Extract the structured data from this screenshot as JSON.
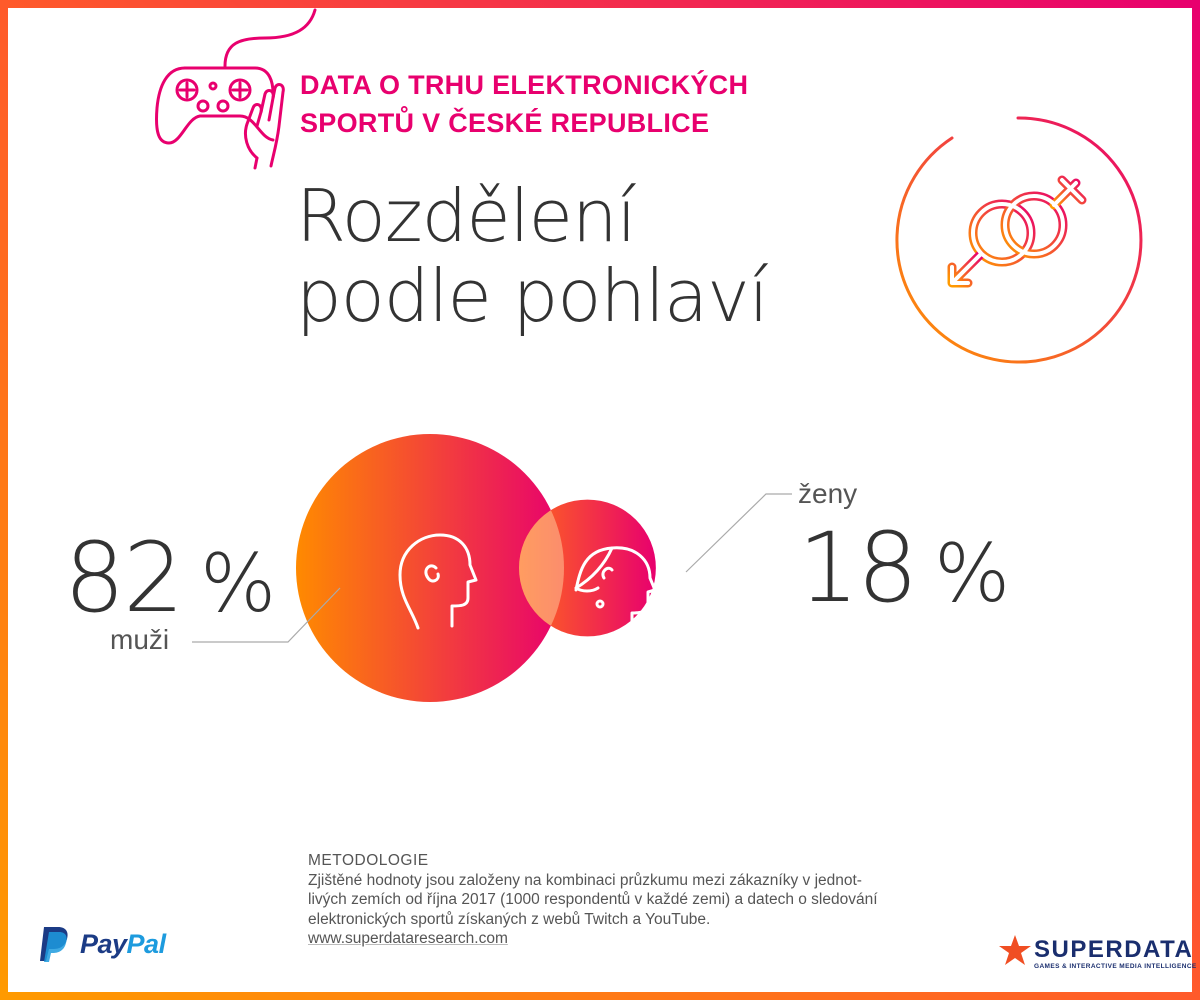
{
  "header": {
    "title_line1": "DATA O TRHU ELEKTRONICKÝCH",
    "title_line2": "SPORTŮ V ČESKÉ REPUBLICE"
  },
  "chart_data": {
    "type": "venn",
    "title_line1": "Rozdělení",
    "title_line2": "podle pohlaví",
    "unit": "%",
    "series": [
      {
        "name": "muži",
        "value": 82,
        "value_label": "82"
      },
      {
        "name": "ženy",
        "value": 18,
        "value_label": "18"
      }
    ]
  },
  "methodology": {
    "heading": "METODOLOGIE",
    "line1": "Zjištěné hodnoty jsou založeny na kombinaci průzkumu mezi zákazníky v jednot-",
    "line2": "livých zemích od října 2017 (1000 respondentů v každé zemi) a datech o sledování",
    "line3": "elektronických sportů získaných z webů Twitch a YouTube.",
    "link": "www.superdataresearch.com"
  },
  "footer": {
    "paypal_part1": "Pay",
    "paypal_part2": "Pal",
    "superdata_name": "SUPERDATA",
    "superdata_tagline": "GAMES & INTERACTIVE MEDIA INTELLIGENCE"
  },
  "colors": {
    "accent_pink": "#e8006e",
    "accent_orange": "#ff8a00",
    "text_dark": "#333333",
    "text_gray": "#555555",
    "paypal_blue": "#1b3b85",
    "paypal_light_blue": "#1d9bde",
    "superdata_navy": "#1a2e6e"
  },
  "icons": [
    "gamepad-icon",
    "hand-icon",
    "gender-symbols-icon",
    "male-head-icon",
    "female-head-icon",
    "paypal-logo",
    "superdata-star-logo"
  ]
}
